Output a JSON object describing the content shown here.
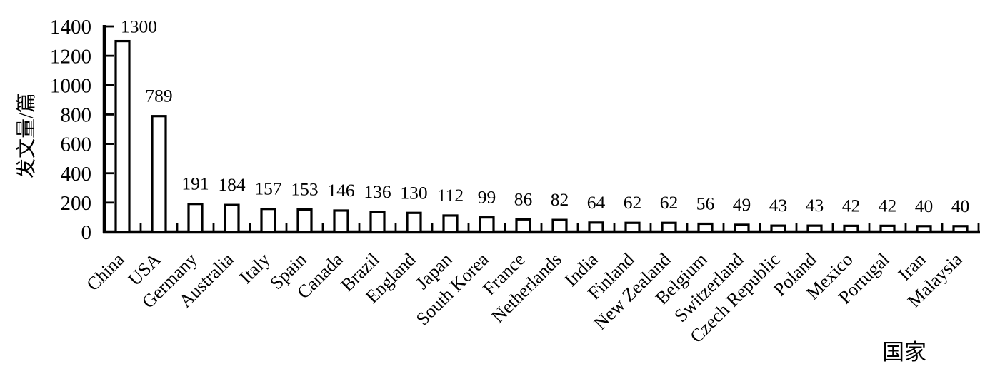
{
  "chart_data": {
    "type": "bar",
    "title": "",
    "categories": [
      "China",
      "USA",
      "Germany",
      "Australia",
      "Italy",
      "Spain",
      "Canada",
      "Brazil",
      "England",
      "Japan",
      "South Korea",
      "France",
      "Netherlands",
      "India",
      "Finland",
      "New Zealand",
      "Belgium",
      "Switzerland",
      "Czech Republic",
      "Poland",
      "Mexico",
      "Portugal",
      "Iran",
      "Malaysia"
    ],
    "values": [
      1300,
      789,
      191,
      184,
      157,
      153,
      146,
      136,
      130,
      112,
      99,
      86,
      82,
      64,
      62,
      62,
      56,
      49,
      43,
      43,
      42,
      42,
      40,
      40
    ],
    "value_labels_shown": true,
    "xlabel": "国家",
    "ylabel": "发文量/篇",
    "ylim": [
      0,
      1400
    ],
    "yticks": [
      0,
      200,
      400,
      600,
      800,
      1000,
      1200,
      1400
    ],
    "grid": false,
    "legend": "none",
    "bar_fill": "#ffffff",
    "bar_stroke": "#000000",
    "axis_color": "#000000",
    "text_color": "#000000",
    "background": "#ffffff",
    "x_tick_style": "boundary-stubs-up",
    "y_tick_style": "inward-right",
    "category_label_rotation_deg": -45
  }
}
